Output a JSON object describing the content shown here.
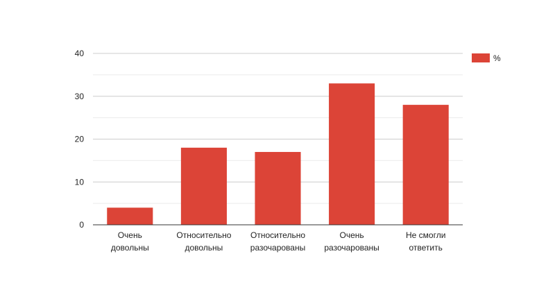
{
  "chart_data": {
    "type": "bar",
    "categories": [
      [
        "Очень",
        "довольны"
      ],
      [
        "Относительно",
        "довольны"
      ],
      [
        "Относительно",
        "разочарованы"
      ],
      [
        "Очень",
        "разочарованы"
      ],
      [
        "Не смогли",
        "ответить"
      ]
    ],
    "series": [
      {
        "name": "%",
        "values": [
          4,
          18,
          17,
          33,
          28
        ]
      }
    ],
    "ylim": [
      0,
      40
    ],
    "yticks": [
      0,
      10,
      20,
      30,
      40
    ],
    "grid": true,
    "minor_grid": true,
    "legend_position": "right-top",
    "colors": {
      "bar": "#dc4437",
      "grid_major": "#cccccc",
      "grid_minor": "#ebebeb",
      "axis": "#333333",
      "text": "#222222"
    }
  }
}
